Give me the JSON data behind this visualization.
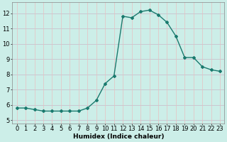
{
  "x": [
    0,
    1,
    2,
    3,
    4,
    5,
    6,
    7,
    8,
    9,
    10,
    11,
    12,
    13,
    14,
    15,
    16,
    17,
    18,
    19,
    20,
    21,
    22,
    23
  ],
  "y": [
    5.8,
    5.8,
    5.7,
    5.6,
    5.6,
    5.6,
    5.6,
    5.6,
    5.8,
    6.3,
    7.4,
    7.9,
    11.8,
    11.7,
    12.1,
    12.2,
    11.9,
    11.4,
    10.5,
    9.1,
    9.1,
    8.5,
    8.3,
    8.2
  ],
  "xlabel": "Humidex (Indice chaleur)",
  "xlim": [
    -0.5,
    23.5
  ],
  "ylim": [
    4.8,
    12.7
  ],
  "yticks": [
    5,
    6,
    7,
    8,
    9,
    10,
    11,
    12
  ],
  "xticks": [
    0,
    1,
    2,
    3,
    4,
    5,
    6,
    7,
    8,
    9,
    10,
    11,
    12,
    13,
    14,
    15,
    16,
    17,
    18,
    19,
    20,
    21,
    22,
    23
  ],
  "xtick_labels": [
    "0",
    "1",
    "2",
    "3",
    "4",
    "5",
    "6",
    "7",
    "8",
    "9",
    "10",
    "11",
    "12",
    "13",
    "14",
    "15",
    "16",
    "17",
    "18",
    "19",
    "20",
    "21",
    "22",
    "23"
  ],
  "line_color": "#1a7a6e",
  "marker": "D",
  "marker_size": 2.0,
  "line_width": 1.0,
  "bg_color": "#cceee8",
  "grid_color_h": "#c8b8c8",
  "grid_color_v": "#e8c0c0",
  "label_fontsize": 6.5,
  "tick_fontsize": 6.0
}
